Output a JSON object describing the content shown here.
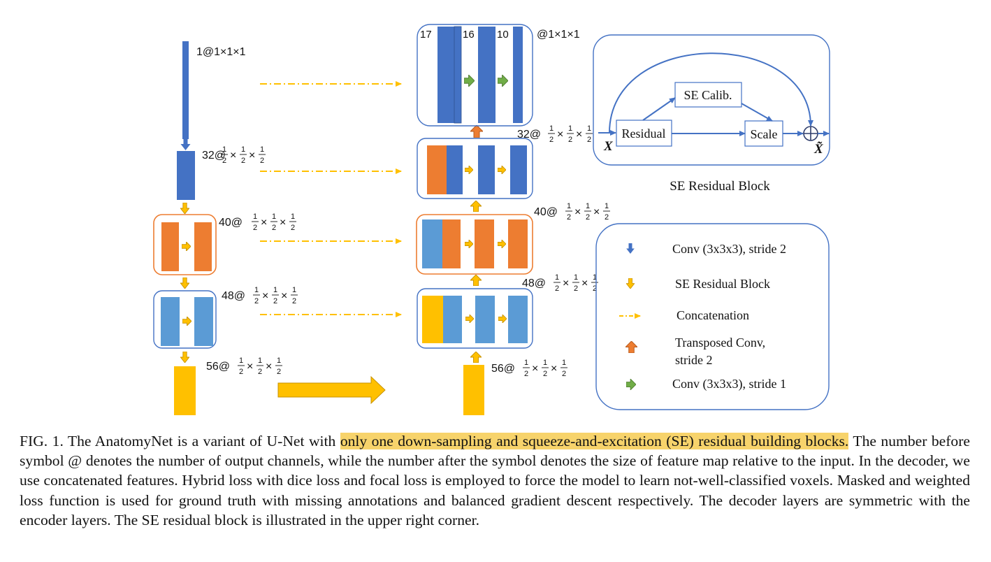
{
  "figure": {
    "labels": {
      "l1": "1@1×1×1",
      "l32": "32@",
      "l40": "40@",
      "l48": "48@",
      "l56": "56@",
      "d56": "56@",
      "d48": "48@",
      "d40": "40@",
      "d32": "32@",
      "top_right": "@1×1×1",
      "n17": "17",
      "n16": "16",
      "n10": "10",
      "half_num": "1",
      "half_den": "2",
      "times": "×"
    },
    "se_block": {
      "x_in": "X",
      "x_out": "X̃",
      "residual": "Residual",
      "se_calib": "SE Calib.",
      "scale": "Scale",
      "title": "SE Residual Block"
    },
    "legend": [
      {
        "icon": "blue-down-arrow-icon",
        "label": "Conv (3x3x3), stride 2"
      },
      {
        "icon": "yellow-down-arrow-icon",
        "label": "SE Residual Block"
      },
      {
        "icon": "dashdot-arrow-icon",
        "label": "Concatenation"
      },
      {
        "icon": "orange-up-arrow-icon",
        "label": "Transposed Conv,",
        "label2": "stride 2"
      },
      {
        "icon": "green-right-arrow-icon",
        "label": "Conv (3x3x3), stride 1"
      }
    ],
    "colors": {
      "dark_blue": "#4472c4",
      "light_blue": "#5b9bd5",
      "orange": "#ed7d31",
      "yellow": "#ffc000",
      "green": "#70ad47",
      "frame_blue": "#4472c4",
      "frame_orange": "#ed7d31"
    }
  },
  "caption": {
    "prefix": "FIG. 1.   The AnatomyNet is a variant of U-Net with ",
    "highlight": "only one down-sampling and squeeze-and-excitation (SE) residual building blocks.",
    "rest": " The number before symbol @ denotes the number of output channels, while the number after the symbol denotes the size of feature map relative to the input. In the decoder, we use concatenated features. Hybrid loss with dice loss and focal loss is employed to force the model to learn not-well-classified voxels. Masked and weighted loss function is used for ground truth with missing annotations and balanced gradient descent respectively. The decoder layers are symmetric with the encoder layers. The SE residual block is illustrated in the upper right corner."
  }
}
